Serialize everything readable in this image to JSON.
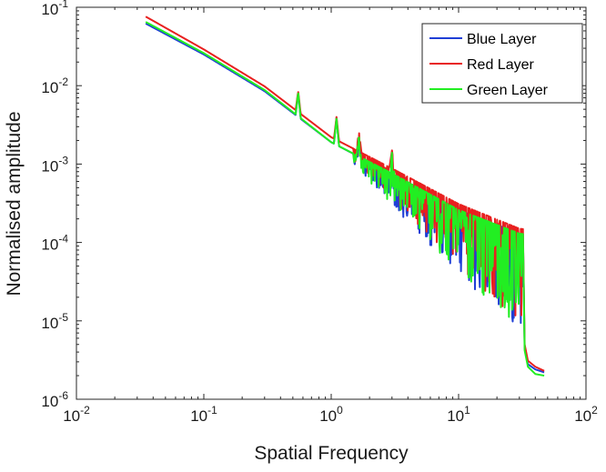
{
  "chart_data": {
    "type": "line",
    "xscale": "log",
    "yscale": "log",
    "xlabel": "Spatial Frequency",
    "ylabel": "Normalised amplitude",
    "xlim": [
      0.01,
      100
    ],
    "ylim": [
      1e-06,
      0.1
    ],
    "x_ticks": [
      {
        "value": 0.01,
        "base": "10",
        "exp": "-2"
      },
      {
        "value": 0.1,
        "base": "10",
        "exp": "-1"
      },
      {
        "value": 1,
        "base": "10",
        "exp": "0"
      },
      {
        "value": 10,
        "base": "10",
        "exp": "1"
      },
      {
        "value": 100,
        "base": "10",
        "exp": "2"
      }
    ],
    "y_ticks": [
      {
        "value": 1e-06,
        "base": "10",
        "exp": "-6"
      },
      {
        "value": 1e-05,
        "base": "10",
        "exp": "-5"
      },
      {
        "value": 0.0001,
        "base": "10",
        "exp": "-4"
      },
      {
        "value": 0.001,
        "base": "10",
        "exp": "-3"
      },
      {
        "value": 0.01,
        "base": "10",
        "exp": "-2"
      },
      {
        "value": 0.1,
        "base": "10",
        "exp": "-1"
      }
    ],
    "legend_position": "top-right",
    "series": [
      {
        "name": "Blue Layer",
        "color": "#1f3fd6",
        "base_points": [
          [
            0.035,
            0.062
          ],
          [
            0.1,
            0.025
          ],
          [
            0.3,
            0.0085
          ],
          [
            0.5,
            0.0045
          ],
          [
            1.0,
            0.0019
          ],
          [
            3.0,
            0.00075
          ],
          [
            10,
            0.00026
          ],
          [
            30,
            0.00013
          ],
          [
            32,
            0.000128
          ]
        ],
        "peaks": [
          [
            0.55,
            0.0081
          ],
          [
            1.1,
            0.0039
          ],
          [
            1.65,
            0.0024
          ],
          [
            3.0,
            0.0014
          ]
        ],
        "noise_range": [
          1.5,
          32
        ],
        "tail": [
          [
            33,
            4.5e-06
          ],
          [
            35,
            2.8e-06
          ],
          [
            40,
            2.4e-06
          ],
          [
            47,
            2.2e-06
          ]
        ]
      },
      {
        "name": "Red Layer",
        "color": "#e8201f",
        "base_points": [
          [
            0.035,
            0.076
          ],
          [
            0.1,
            0.029
          ],
          [
            0.3,
            0.0098
          ],
          [
            0.5,
            0.0052
          ],
          [
            1.0,
            0.0022
          ],
          [
            3.0,
            0.00088
          ],
          [
            10,
            0.00031
          ],
          [
            30,
            0.00015
          ],
          [
            32,
            0.000148
          ]
        ],
        "peaks": [
          [
            0.55,
            0.0085
          ],
          [
            1.1,
            0.004
          ],
          [
            1.65,
            0.0026
          ],
          [
            3.0,
            0.0015
          ]
        ],
        "noise_range": [
          1.5,
          32
        ],
        "tail": [
          [
            33,
            5e-06
          ],
          [
            35,
            3.1e-06
          ],
          [
            40,
            2.6e-06
          ],
          [
            47,
            2.3e-06
          ]
        ]
      },
      {
        "name": "Green Layer",
        "color": "#22ee22",
        "base_points": [
          [
            0.035,
            0.065
          ],
          [
            0.1,
            0.026
          ],
          [
            0.3,
            0.0088
          ],
          [
            0.5,
            0.0046
          ],
          [
            1.0,
            0.0019
          ],
          [
            3.0,
            0.00076
          ],
          [
            10,
            0.00026
          ],
          [
            30,
            0.00013
          ],
          [
            32,
            0.000128
          ]
        ],
        "peaks": [
          [
            0.55,
            0.0082
          ],
          [
            1.1,
            0.0038
          ],
          [
            1.65,
            0.0023
          ],
          [
            3.0,
            0.0014
          ]
        ],
        "noise_range": [
          1.5,
          32
        ],
        "tail": [
          [
            33,
            4.2e-06
          ],
          [
            35,
            2.6e-06
          ],
          [
            40,
            2.1e-06
          ],
          [
            47,
            2e-06
          ]
        ]
      }
    ]
  }
}
